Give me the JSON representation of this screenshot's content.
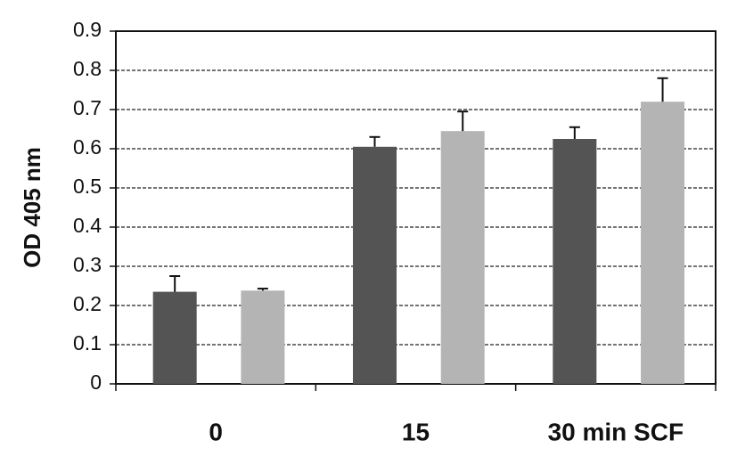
{
  "chart_data": {
    "type": "bar",
    "y_label": "OD 405 nm",
    "categories": [
      "0",
      "15",
      "30 min SCF"
    ],
    "series": [
      {
        "color": "#545454",
        "values": [
          0.235,
          0.605,
          0.625
        ],
        "errors": [
          0.04,
          0.025,
          0.03
        ]
      },
      {
        "color": "#b4b4b4",
        "values": [
          0.238,
          0.645,
          0.72
        ],
        "errors": [
          0.005,
          0.05,
          0.06
        ]
      }
    ],
    "ylim": [
      0,
      0.9
    ],
    "yticks": [
      0,
      0.1,
      0.2,
      0.3,
      0.4,
      0.5,
      0.6,
      0.7,
      0.8,
      0.9
    ],
    "grid": true
  }
}
